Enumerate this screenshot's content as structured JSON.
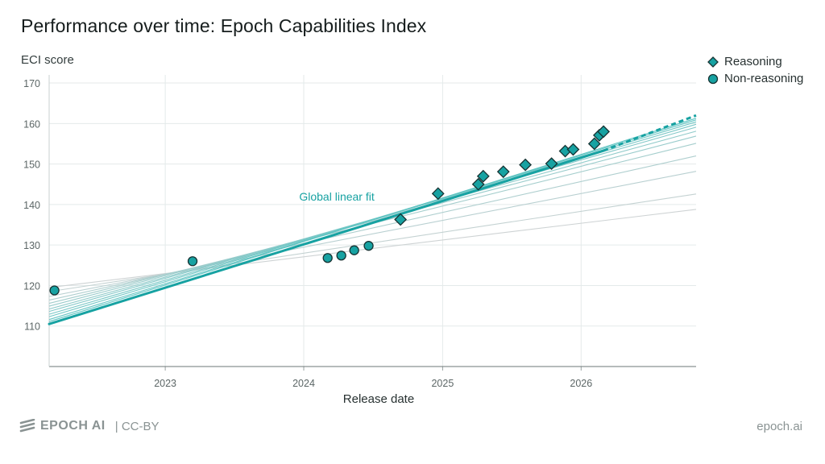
{
  "title": "Performance over time: Epoch Capabilities Index",
  "footer": {
    "brand": "EPOCH AI",
    "license": "| CC-BY",
    "url": "epoch.ai"
  },
  "colors": {
    "teal": "#17a2a2",
    "teal_dark": "#0f6f70",
    "grid": "#e4eaea",
    "ensemble_light": "#d2d8d8"
  },
  "chart_data": {
    "type": "scatter",
    "title": "Performance over time: Epoch Capabilities Index",
    "xlabel": "Release date",
    "ylabel": "ECI score",
    "x_type": "date",
    "xlim": [
      "2022-03-01",
      "2026-10-31"
    ],
    "ylim": [
      100,
      172
    ],
    "x_ticks": [
      "2023",
      "2024",
      "2025",
      "2026"
    ],
    "x_tick_dates": [
      "2023-01-01",
      "2024-01-01",
      "2025-01-01",
      "2026-01-01"
    ],
    "y_ticks": [
      110,
      120,
      130,
      140,
      150,
      160,
      170
    ],
    "grid": true,
    "legend_position": "top-right",
    "series": [
      {
        "name": "Reasoning",
        "marker": "diamond",
        "points": [
          {
            "x": "2024-09-12",
            "y": 136.3
          },
          {
            "x": "2024-12-20",
            "y": 142.7
          },
          {
            "x": "2025-04-05",
            "y": 145.0
          },
          {
            "x": "2025-04-18",
            "y": 147.0
          },
          {
            "x": "2025-06-10",
            "y": 148.1
          },
          {
            "x": "2025-08-07",
            "y": 149.8
          },
          {
            "x": "2025-10-15",
            "y": 150.1
          },
          {
            "x": "2025-11-20",
            "y": 153.2
          },
          {
            "x": "2025-12-11",
            "y": 153.6
          },
          {
            "x": "2026-02-05",
            "y": 155.0
          },
          {
            "x": "2026-02-18",
            "y": 157.1
          },
          {
            "x": "2026-03-01",
            "y": 158.0
          }
        ]
      },
      {
        "name": "Non-reasoning",
        "marker": "circle",
        "points": [
          {
            "x": "2022-03-15",
            "y": 118.8
          },
          {
            "x": "2023-03-14",
            "y": 126.0
          },
          {
            "x": "2024-03-04",
            "y": 126.8
          },
          {
            "x": "2024-04-09",
            "y": 127.4
          },
          {
            "x": "2024-05-13",
            "y": 128.7
          },
          {
            "x": "2024-06-20",
            "y": 129.8
          }
        ]
      }
    ],
    "annotations": [
      {
        "text": "Global linear fit",
        "x": "2023-12-20",
        "y": 141.0
      }
    ],
    "global_fit": {
      "start": {
        "x": "2022-03-01",
        "y": 110.5
      },
      "end": {
        "x": "2026-03-01",
        "y": 153.3
      },
      "dashed_end": {
        "x": "2026-10-31",
        "y": 162.0
      }
    },
    "ensemble_fits": [
      {
        "y_start": 119.5,
        "y_end": 138.8
      },
      {
        "y_start": 118.5,
        "y_end": 142.6
      },
      {
        "y_start": 117.3,
        "y_end": 148.2
      },
      {
        "y_start": 116.4,
        "y_end": 152.0
      },
      {
        "y_start": 115.6,
        "y_end": 155.1
      },
      {
        "y_start": 114.9,
        "y_end": 156.9
      },
      {
        "y_start": 114.2,
        "y_end": 158.1
      },
      {
        "y_start": 113.6,
        "y_end": 159.1
      },
      {
        "y_start": 112.9,
        "y_end": 159.8
      },
      {
        "y_start": 112.3,
        "y_end": 160.4
      },
      {
        "y_start": 111.6,
        "y_end": 160.9
      },
      {
        "y_start": 111.1,
        "y_end": 161.3
      }
    ]
  }
}
